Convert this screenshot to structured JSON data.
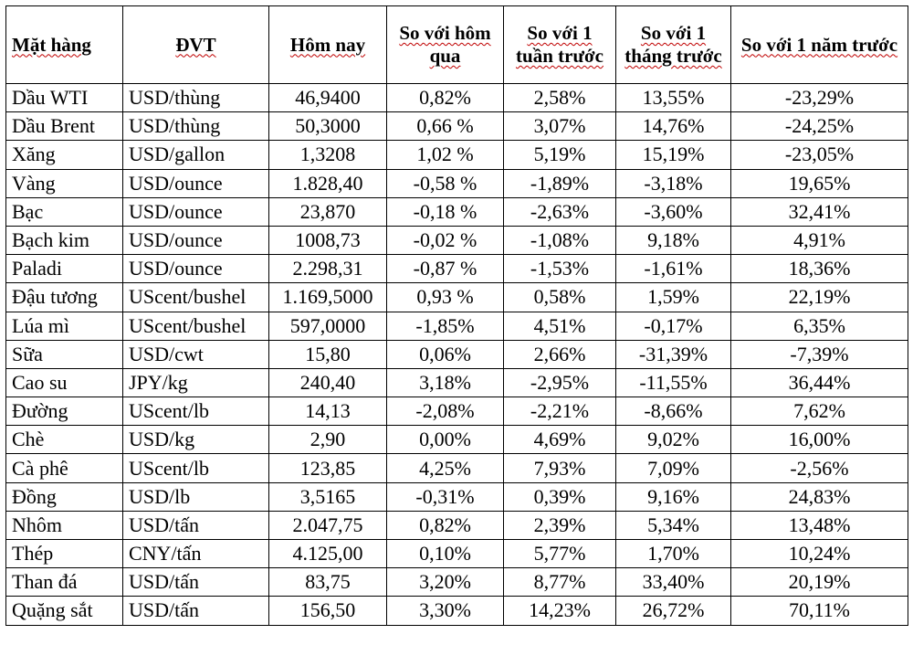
{
  "table": {
    "headers": [
      "Mặt hàng",
      "ĐVT",
      "Hôm nay",
      "So với hôm qua",
      "So với 1 tuần trước",
      "So với 1 tháng trước",
      "So với 1 năm trước"
    ],
    "rows": [
      [
        "Dầu WTI",
        "USD/thùng",
        "46,9400",
        "0,82%",
        "2,58%",
        "13,55%",
        "-23,29%"
      ],
      [
        "Dầu Brent",
        "USD/thùng",
        "50,3000",
        "0,66 %",
        "3,07%",
        "14,76%",
        "-24,25%"
      ],
      [
        "Xăng",
        "USD/gallon",
        "1,3208",
        "1,02 %",
        "5,19%",
        "15,19%",
        "-23,05%"
      ],
      [
        "Vàng",
        "USD/ounce",
        "1.828,40",
        "-0,58 %",
        "-1,89%",
        "-3,18%",
        "19,65%"
      ],
      [
        "Bạc",
        "USD/ounce",
        "23,870",
        "-0,18 %",
        "-2,63%",
        "-3,60%",
        "32,41%"
      ],
      [
        "Bạch kim",
        "USD/ounce",
        "1008,73",
        "-0,02 %",
        "-1,08%",
        "9,18%",
        "4,91%"
      ],
      [
        "Paladi",
        "USD/ounce",
        "2.298,31",
        "-0,87 %",
        "-1,53%",
        "-1,61%",
        "18,36%"
      ],
      [
        "Đậu tương",
        "UScent/bushel",
        "1.169,5000",
        "0,93 %",
        "0,58%",
        "1,59%",
        "22,19%"
      ],
      [
        "Lúa mì",
        "UScent/bushel",
        "597,0000",
        "-1,85%",
        "4,51%",
        "-0,17%",
        "6,35%"
      ],
      [
        "Sữa",
        "USD/cwt",
        "15,80",
        "0,06%",
        "2,66%",
        "-31,39%",
        "-7,39%"
      ],
      [
        "Cao su",
        "JPY/kg",
        "240,40",
        "3,18%",
        "-2,95%",
        "-11,55%",
        "36,44%"
      ],
      [
        "Đường",
        "UScent/lb",
        "14,13",
        "-2,08%",
        "-2,21%",
        "-8,66%",
        "7,62%"
      ],
      [
        "Chè",
        "USD/kg",
        "2,90",
        "0,00%",
        "4,69%",
        "9,02%",
        "16,00%"
      ],
      [
        "Cà phê",
        "UScent/lb",
        "123,85",
        "4,25%",
        "7,93%",
        "7,09%",
        "-2,56%"
      ],
      [
        "Đồng",
        "USD/lb",
        "3,5165",
        "-0,31%",
        "0,39%",
        "9,16%",
        "24,83%"
      ],
      [
        "Nhôm",
        "USD/tấn",
        "2.047,75",
        "0,82%",
        "2,39%",
        "5,34%",
        "13,48%"
      ],
      [
        "Thép",
        "CNY/tấn",
        "4.125,00",
        "0,10%",
        "5,77%",
        "1,70%",
        "10,24%"
      ],
      [
        "Than đá",
        "USD/tấn",
        "83,75",
        "3,20%",
        "8,77%",
        "33,40%",
        "20,19%"
      ],
      [
        "Quặng sắt",
        "USD/tấn",
        "156,50",
        "3,30%",
        "14,23%",
        "26,72%",
        "70,11%"
      ]
    ]
  }
}
